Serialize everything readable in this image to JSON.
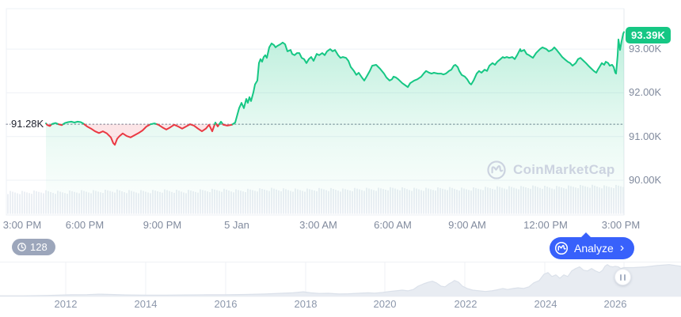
{
  "watermark": {
    "brand": "CoinMarketCap"
  },
  "price_axis": {
    "current_price_badge": "93.39K",
    "baseline_label": "91.28K",
    "ticks": [
      "93.00K",
      "92.00K",
      "91.00K",
      "90.00K"
    ]
  },
  "time_axis": {
    "ticks": [
      "3:00 PM",
      "6:00 PM",
      "9:00 PM",
      "5 Jan",
      "3:00 AM",
      "6:00 AM",
      "9:00 AM",
      "12:00 PM",
      "3:00 PM"
    ]
  },
  "range_selector": {
    "years": [
      "2012",
      "2014",
      "2016",
      "2018",
      "2020",
      "2022",
      "2024",
      "2026"
    ]
  },
  "history_badge": {
    "count": "128"
  },
  "analyze_button": {
    "label": "Analyze",
    "chevron": "›"
  },
  "colors": {
    "up_green": "#16c784",
    "down_red": "#ea3943",
    "brand_blue": "#3861fb",
    "badge_gray": "#9ca6bb",
    "axis_text": "#808a9d",
    "baseline_text": "#222531",
    "grid": "#eef1f6",
    "watermark": "#ccd3e0",
    "volume_fill": "#ebeff4",
    "mini_fill": "#e8ecf2"
  },
  "chart_data": [
    {
      "id": "main-price-chart",
      "type": "line",
      "title": "",
      "xlabel": "",
      "ylabel": "",
      "x_unit": "plot pixel offset (time proxy, 3:00 PM to 3:00 PM next day)",
      "x_tick_labels": [
        "3:00 PM",
        "6:00 PM",
        "9:00 PM",
        "5 Jan",
        "3:00 AM",
        "6:00 AM",
        "9:00 AM",
        "12:00 PM",
        "3:00 PM"
      ],
      "y_tick_labels": [
        "93.00K",
        "92.00K",
        "91.00K",
        "90.00K"
      ],
      "y_tick_values": [
        93000,
        92000,
        91000,
        90000
      ],
      "ylim": [
        89200,
        93900
      ],
      "grid": "horizontal",
      "legend": "none",
      "baseline_value": 91280,
      "baseline_label": "91.28K",
      "last_value": 93390,
      "last_label": "93.39K",
      "series_color_above": "#16c784",
      "series_color_below": "#ea3943",
      "points": [
        [
          58,
          91300
        ],
        [
          60,
          91260
        ],
        [
          63,
          91240
        ],
        [
          66,
          91290
        ],
        [
          70,
          91310
        ],
        [
          74,
          91280
        ],
        [
          78,
          91260
        ],
        [
          82,
          91310
        ],
        [
          86,
          91330
        ],
        [
          90,
          91340
        ],
        [
          94,
          91320
        ],
        [
          98,
          91340
        ],
        [
          102,
          91330
        ],
        [
          105,
          91300
        ],
        [
          110,
          91230
        ],
        [
          115,
          91180
        ],
        [
          120,
          91120
        ],
        [
          125,
          91080
        ],
        [
          130,
          91120
        ],
        [
          135,
          91070
        ],
        [
          140,
          90980
        ],
        [
          143,
          90850
        ],
        [
          145,
          90810
        ],
        [
          148,
          90950
        ],
        [
          151,
          91010
        ],
        [
          155,
          91070
        ],
        [
          160,
          91010
        ],
        [
          165,
          90980
        ],
        [
          170,
          91030
        ],
        [
          175,
          91080
        ],
        [
          180,
          91140
        ],
        [
          185,
          91230
        ],
        [
          190,
          91280
        ],
        [
          195,
          91300
        ],
        [
          200,
          91270
        ],
        [
          205,
          91210
        ],
        [
          210,
          91160
        ],
        [
          215,
          91210
        ],
        [
          220,
          91270
        ],
        [
          225,
          91230
        ],
        [
          230,
          91180
        ],
        [
          235,
          91230
        ],
        [
          240,
          91280
        ],
        [
          245,
          91250
        ],
        [
          250,
          91180
        ],
        [
          255,
          91120
        ],
        [
          260,
          91180
        ],
        [
          264,
          91270
        ],
        [
          268,
          91120
        ],
        [
          272,
          91320
        ],
        [
          275,
          91230
        ],
        [
          279,
          91340
        ],
        [
          282,
          91270
        ],
        [
          287,
          91250
        ],
        [
          293,
          91270
        ],
        [
          297,
          91320
        ],
        [
          302,
          91650
        ],
        [
          305,
          91770
        ],
        [
          308,
          91650
        ],
        [
          311,
          91860
        ],
        [
          313,
          91770
        ],
        [
          315,
          91900
        ],
        [
          317,
          91810
        ],
        [
          320,
          92010
        ],
        [
          322,
          92190
        ],
        [
          325,
          92280
        ],
        [
          327,
          92680
        ],
        [
          329,
          92770
        ],
        [
          331,
          92710
        ],
        [
          333,
          92820
        ],
        [
          335,
          92860
        ],
        [
          337,
          92800
        ],
        [
          340,
          93040
        ],
        [
          343,
          93130
        ],
        [
          346,
          93090
        ],
        [
          348,
          93040
        ],
        [
          350,
          93070
        ],
        [
          354,
          93110
        ],
        [
          357,
          93150
        ],
        [
          360,
          93110
        ],
        [
          363,
          92950
        ],
        [
          367,
          92980
        ],
        [
          369,
          92890
        ],
        [
          372,
          92860
        ],
        [
          375,
          92910
        ],
        [
          378,
          92910
        ],
        [
          381,
          92800
        ],
        [
          384,
          92770
        ],
        [
          387,
          92680
        ],
        [
          390,
          92770
        ],
        [
          393,
          92820
        ],
        [
          396,
          92730
        ],
        [
          400,
          92890
        ],
        [
          403,
          92860
        ],
        [
          407,
          92910
        ],
        [
          410,
          92860
        ],
        [
          413,
          92950
        ],
        [
          417,
          93000
        ],
        [
          420,
          92950
        ],
        [
          423,
          92980
        ],
        [
          427,
          92860
        ],
        [
          430,
          92800
        ],
        [
          433,
          92820
        ],
        [
          437,
          92800
        ],
        [
          440,
          92730
        ],
        [
          443,
          92590
        ],
        [
          447,
          92500
        ],
        [
          450,
          92410
        ],
        [
          453,
          92460
        ],
        [
          457,
          92350
        ],
        [
          460,
          92280
        ],
        [
          463,
          92370
        ],
        [
          467,
          92500
        ],
        [
          470,
          92620
        ],
        [
          475,
          92640
        ],
        [
          480,
          92550
        ],
        [
          485,
          92440
        ],
        [
          488,
          92350
        ],
        [
          492,
          92280
        ],
        [
          495,
          92310
        ],
        [
          497,
          92370
        ],
        [
          500,
          92350
        ],
        [
          503,
          92310
        ],
        [
          508,
          92220
        ],
        [
          512,
          92170
        ],
        [
          515,
          92130
        ],
        [
          518,
          92220
        ],
        [
          523,
          92280
        ],
        [
          527,
          92310
        ],
        [
          532,
          92370
        ],
        [
          535,
          92440
        ],
        [
          538,
          92500
        ],
        [
          542,
          92460
        ],
        [
          545,
          92440
        ],
        [
          548,
          92460
        ],
        [
          553,
          92440
        ],
        [
          557,
          92440
        ],
        [
          560,
          92420
        ],
        [
          563,
          92440
        ],
        [
          567,
          92500
        ],
        [
          570,
          92530
        ],
        [
          573,
          92620
        ],
        [
          575,
          92640
        ],
        [
          578,
          92590
        ],
        [
          580,
          92500
        ],
        [
          583,
          92410
        ],
        [
          587,
          92370
        ],
        [
          590,
          92310
        ],
        [
          593,
          92220
        ],
        [
          595,
          92190
        ],
        [
          598,
          92280
        ],
        [
          602,
          92440
        ],
        [
          605,
          92500
        ],
        [
          608,
          92460
        ],
        [
          612,
          92530
        ],
        [
          615,
          92500
        ],
        [
          618,
          92620
        ],
        [
          622,
          92680
        ],
        [
          625,
          92640
        ],
        [
          628,
          92710
        ],
        [
          632,
          92770
        ],
        [
          635,
          92820
        ],
        [
          637,
          92800
        ],
        [
          640,
          92820
        ],
        [
          643,
          92800
        ],
        [
          647,
          92820
        ],
        [
          650,
          92770
        ],
        [
          653,
          92860
        ],
        [
          657,
          93000
        ],
        [
          658,
          92950
        ],
        [
          662,
          92980
        ],
        [
          665,
          92890
        ],
        [
          668,
          92860
        ],
        [
          673,
          92800
        ],
        [
          677,
          92910
        ],
        [
          682,
          93000
        ],
        [
          685,
          93040
        ],
        [
          690,
          93000
        ],
        [
          693,
          92950
        ],
        [
          697,
          92980
        ],
        [
          700,
          93040
        ],
        [
          703,
          92980
        ],
        [
          707,
          92890
        ],
        [
          710,
          92820
        ],
        [
          713,
          92770
        ],
        [
          717,
          92710
        ],
        [
          720,
          92680
        ],
        [
          723,
          92620
        ],
        [
          727,
          92680
        ],
        [
          730,
          92770
        ],
        [
          733,
          92800
        ],
        [
          737,
          92730
        ],
        [
          740,
          92680
        ],
        [
          743,
          92620
        ],
        [
          747,
          92550
        ],
        [
          750,
          92500
        ],
        [
          753,
          92460
        ],
        [
          755,
          92530
        ],
        [
          758,
          92620
        ],
        [
          760,
          92680
        ],
        [
          763,
          92640
        ],
        [
          765,
          92710
        ],
        [
          768,
          92680
        ],
        [
          770,
          92620
        ],
        [
          773,
          92640
        ],
        [
          775,
          92590
        ],
        [
          777,
          92460
        ],
        [
          778,
          92440
        ],
        [
          780,
          92860
        ],
        [
          781,
          93220
        ],
        [
          783,
          92980
        ],
        [
          785,
          93180
        ],
        [
          787,
          93350
        ],
        [
          788,
          93390
        ]
      ],
      "volume_profile": [
        27,
        27,
        28,
        27,
        28,
        28,
        29,
        28,
        28,
        29,
        28,
        29,
        30,
        29,
        30,
        31,
        30,
        30,
        31,
        30,
        31,
        31,
        32,
        31,
        31,
        32,
        31,
        32,
        33,
        33,
        34,
        33,
        34,
        35,
        34,
        35
      ]
    },
    {
      "id": "history-range-chart",
      "type": "area",
      "title": "",
      "x_tick_labels": [
        "2012",
        "2014",
        "2016",
        "2018",
        "2020",
        "2022",
        "2024",
        "2026"
      ],
      "value_unit": "relative price 0-100",
      "grid": "vertical",
      "points": [
        [
          0,
          2
        ],
        [
          30,
          2
        ],
        [
          60,
          3
        ],
        [
          90,
          5
        ],
        [
          110,
          5.5
        ],
        [
          125,
          7
        ],
        [
          140,
          6
        ],
        [
          160,
          4.5
        ],
        [
          185,
          4
        ],
        [
          210,
          4
        ],
        [
          235,
          4.5
        ],
        [
          260,
          5
        ],
        [
          285,
          5
        ],
        [
          310,
          6
        ],
        [
          335,
          7.5
        ],
        [
          355,
          9.5
        ],
        [
          370,
          11
        ],
        [
          383,
          14
        ],
        [
          392,
          11
        ],
        [
          403,
          9
        ],
        [
          415,
          9.5
        ],
        [
          428,
          7.5
        ],
        [
          440,
          8
        ],
        [
          452,
          9.5
        ],
        [
          465,
          11
        ],
        [
          473,
          10
        ],
        [
          483,
          12
        ],
        [
          492,
          15
        ],
        [
          500,
          17
        ],
        [
          508,
          19
        ],
        [
          515,
          17
        ],
        [
          522,
          21
        ],
        [
          528,
          31
        ],
        [
          535,
          38
        ],
        [
          541,
          43
        ],
        [
          546,
          46
        ],
        [
          551,
          41
        ],
        [
          557,
          31
        ],
        [
          562,
          29
        ],
        [
          567,
          38
        ],
        [
          571,
          43
        ],
        [
          574,
          48
        ],
        [
          579,
          43
        ],
        [
          584,
          31
        ],
        [
          590,
          24
        ],
        [
          597,
          19
        ],
        [
          605,
          17
        ],
        [
          613,
          15
        ],
        [
          621,
          17
        ],
        [
          628,
          20
        ],
        [
          635,
          24
        ],
        [
          641,
          21
        ],
        [
          648,
          24
        ],
        [
          654,
          26
        ],
        [
          661,
          24
        ],
        [
          668,
          29
        ],
        [
          674,
          41
        ],
        [
          681,
          48
        ],
        [
          687,
          67
        ],
        [
          692,
          72
        ],
        [
          697,
          60
        ],
        [
          702,
          65
        ],
        [
          707,
          55
        ],
        [
          712,
          65
        ],
        [
          717,
          60
        ],
        [
          722,
          77
        ],
        [
          727,
          84
        ],
        [
          732,
          89
        ],
        [
          737,
          79
        ],
        [
          742,
          77
        ],
        [
          747,
          84
        ],
        [
          752,
          77
        ],
        [
          757,
          72
        ],
        [
          761,
          79
        ],
        [
          764,
          91
        ],
        [
          767,
          96
        ],
        [
          770,
          91
        ],
        [
          774,
          89
        ],
        [
          777,
          91
        ],
        [
          781,
          89
        ],
        [
          784,
          84
        ],
        [
          788,
          87
        ],
        [
          800,
          87
        ],
        [
          815,
          89
        ],
        [
          830,
          93
        ],
        [
          845,
          96
        ],
        [
          860,
          91
        ]
      ]
    }
  ]
}
